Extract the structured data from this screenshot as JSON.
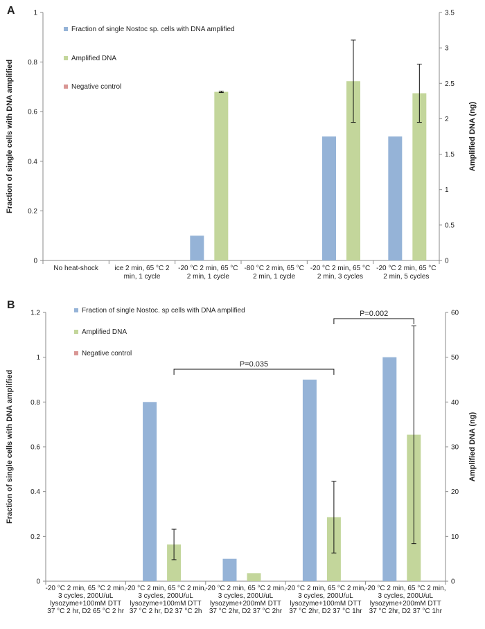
{
  "chart_data": [
    {
      "panel": "A",
      "type": "bar",
      "title": "",
      "xlabel": "",
      "ylabel": "Fraction of single cells with DNA amplified",
      "y2label": "Amplified DNA (ng)",
      "ylim": [
        0,
        1
      ],
      "y2lim": [
        0,
        3.5
      ],
      "yticks": [
        "0",
        "0.2",
        "0.4",
        "0.6",
        "0.8",
        "1"
      ],
      "y2ticks": [
        "0",
        "0.5",
        "1",
        "1.5",
        "2",
        "2.5",
        "3",
        "3.5"
      ],
      "categories": [
        [
          "No heat-shock"
        ],
        [
          "ice 2 min, 65 °C 2",
          "min, 1 cycle"
        ],
        [
          "-20 °C 2 min, 65 °C",
          "2 min, 1 cycle"
        ],
        [
          "-80 °C 2 min, 65 °C",
          "2 min, 1 cycle"
        ],
        [
          "-20 °C 2 min, 65 °C",
          "2 min, 3 cycles"
        ],
        [
          "-20 °C 2 min, 65 °C",
          "2 min, 5 cycles"
        ]
      ],
      "series": [
        {
          "name": "Fraction of single Nostoc sp. cells with DNA amplified",
          "axis": "left",
          "color": "#95b3d7",
          "values": [
            0,
            0,
            0.1,
            0,
            0.5,
            0.5
          ],
          "errors": [
            null,
            null,
            null,
            null,
            null,
            null
          ]
        },
        {
          "name": "Amplified DNA",
          "axis": "right",
          "color": "#c3d69b",
          "values": [
            0,
            0,
            2.38,
            0,
            2.53,
            2.36
          ],
          "errors": [
            null,
            null,
            0.01,
            null,
            0.58,
            0.41
          ]
        },
        {
          "name": "Negative control",
          "axis": "right",
          "color": "#d99694",
          "values": [
            0,
            0,
            0,
            0,
            0,
            0
          ],
          "errors": [
            null,
            null,
            null,
            null,
            null,
            null
          ]
        }
      ],
      "annotations": [],
      "legend_position": "top-left"
    },
    {
      "panel": "B",
      "type": "bar",
      "title": "",
      "xlabel": "",
      "ylabel": "Fraction of single cells with DNA amplified",
      "y2label": "Amplified DNA (ng)",
      "ylim": [
        0,
        1.2
      ],
      "y2lim": [
        0,
        60
      ],
      "yticks": [
        "0",
        "0.2",
        "0.4",
        "0.6",
        "0.8",
        "1",
        "1.2"
      ],
      "y2ticks": [
        "0",
        "10",
        "20",
        "30",
        "40",
        "50",
        "60"
      ],
      "categories": [
        [
          "-20 °C 2 min, 65 °C 2 min,"
        ],
        [
          "-20 °C 2 min, 65 °C 2 min,",
          "3 cycles, 200U/uL",
          "lysozyme+100mM DTT",
          "37 °C 2 hr, D2 37 °C 2h"
        ],
        [
          "-20 °C 2 min, 65 °C 2 min,",
          "3 cycles, 200U/uL",
          "lysozyme+200mM DTT",
          "37 °C 2hr, D2 37 °C 2hr"
        ],
        [
          "-20 °C 2 min, 65 °C 2 min,",
          "3 cycles, 200U/uL",
          "lysozyme+100mM DTT",
          "37 °C 2hr, D2 37 °C 1hr"
        ],
        [
          "-20 °C 2 min, 65 °C 2 min,",
          "3 cycles, 200U/uL",
          "lysozyme+200mM DTT",
          "37 °C 2hr, D2 37 °C 1hr"
        ]
      ],
      "extra_cat_lines": [
        "3 cycles, 200U/uL",
        "lysozyme+100mM DTT",
        "37 °C 2 hr, D2 65 °C 2 hr"
      ],
      "series": [
        {
          "name": "Fraction of single Nostoc. sp cells with DNA amplified",
          "axis": "left",
          "color": "#95b3d7",
          "values": [
            0,
            0.8,
            0.1,
            0.9,
            1.0
          ],
          "errors": [
            null,
            null,
            null,
            null,
            null
          ]
        },
        {
          "name": "Amplified DNA",
          "axis": "right",
          "color": "#c3d69b",
          "values": [
            0,
            8.2,
            1.8,
            14.3,
            32.7
          ],
          "errors": [
            null,
            3.4,
            null,
            8.0,
            24.3
          ]
        },
        {
          "name": "Negative control",
          "axis": "right",
          "color": "#d99694",
          "values": [
            0,
            0,
            0,
            0,
            0
          ],
          "errors": [
            null,
            null,
            null,
            null,
            null
          ]
        }
      ],
      "annotations": [
        {
          "text": "P=0.035",
          "from_category": 1,
          "to_category": 3
        },
        {
          "text": "P=0.002",
          "from_category": 3,
          "to_category": 4
        }
      ],
      "legend_position": "top-left"
    }
  ]
}
